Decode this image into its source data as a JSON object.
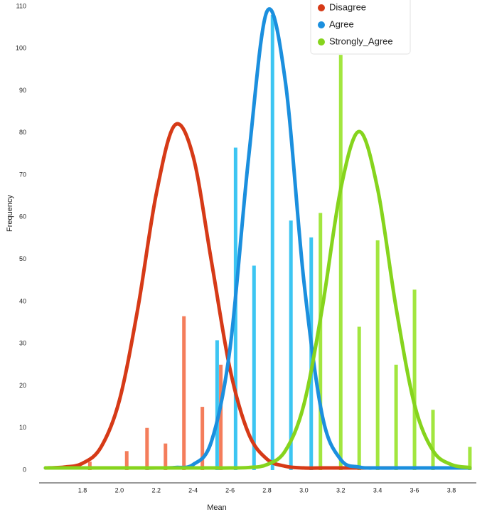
{
  "chart_data": {
    "type": "histogram-with-curves",
    "x_label": "Mean",
    "y_label": "Frequency",
    "xlim": [
      1.565,
      3.935
    ],
    "ylim": [
      0,
      110
    ],
    "yticks": [
      0,
      10,
      20,
      30,
      40,
      50,
      60,
      70,
      80,
      90,
      100,
      110
    ],
    "xticks": [
      1.8,
      {
        "value": 2.0,
        "label": "2.0"
      },
      2.2,
      {
        "value": 2.4,
        "label": "2-4"
      },
      {
        "value": 2.6,
        "label": "2-6"
      },
      2.8,
      {
        "value": 3.0,
        "label": "3.0"
      },
      3.2,
      3.4,
      {
        "value": 3.6,
        "label": "3-6"
      },
      3.8
    ],
    "legend": "upper right",
    "series": [
      {
        "name": "Disagree",
        "color": "#d63a17",
        "bar_color": "#f47d5b",
        "bars": {
          "x": [
            1.84,
            2.04,
            2.15,
            2.25,
            2.35,
            2.45,
            2.55
          ],
          "values": [
            2,
            4.5,
            10,
            6.3,
            36.5,
            15,
            25
          ]
        },
        "curve": {
          "x": [
            1.6,
            1.7,
            1.8,
            1.9,
            2.0,
            2.1,
            2.2,
            2.3,
            2.4,
            2.5,
            2.6,
            2.7,
            2.8,
            2.9,
            3.0,
            3.1,
            3.2,
            3.3,
            3.4,
            3.5,
            3.6,
            3.7,
            3.8,
            3.9
          ],
          "values": [
            0.5,
            0.7,
            1.6,
            5.4,
            16.5,
            38.3,
            65.5,
            81.8,
            74.4,
            49.3,
            23.9,
            8.7,
            2.6,
            0.9,
            0.5,
            0.5,
            0.5,
            0.5,
            0.5,
            0.5,
            0.5,
            0.5,
            0.5,
            0.5
          ]
        }
      },
      {
        "name": "Agree",
        "color": "#1b8fde",
        "bar_color": "#3cc5f2",
        "bars": {
          "x": [
            2.53,
            2.63,
            2.73,
            2.83,
            2.93,
            3.04
          ],
          "values": [
            30.8,
            76.5,
            48.5,
            108,
            59.2,
            55.2
          ]
        },
        "curve": {
          "x": [
            1.6,
            1.7,
            1.8,
            1.9,
            2.0,
            2.1,
            2.2,
            2.3,
            2.4,
            2.5,
            2.6,
            2.7,
            2.8,
            2.9,
            3.0,
            3.1,
            3.2,
            3.3,
            3.4,
            3.5,
            3.6,
            3.7,
            3.8,
            3.9
          ],
          "values": [
            0.5,
            0.5,
            0.5,
            0.5,
            0.5,
            0.5,
            0.5,
            0.6,
            1.3,
            6.9,
            28.9,
            73.9,
            108.8,
            92.1,
            44.9,
            12.9,
            2.5,
            0.7,
            0.5,
            0.5,
            0.5,
            0.5,
            0.5,
            0.5
          ]
        }
      },
      {
        "name": "Strongly_Agree",
        "color": "#86d41d",
        "bar_color": "#a2e63f",
        "bars": {
          "x": [
            3.09,
            3.2,
            3.3,
            3.4,
            3.5,
            3.6,
            3.7,
            3.9
          ],
          "values": [
            61,
            98.5,
            34,
            54.5,
            25,
            42.8,
            14.3,
            5.5
          ]
        },
        "curve": {
          "x": [
            1.6,
            1.7,
            1.8,
            1.9,
            2.0,
            2.1,
            2.2,
            2.3,
            2.4,
            2.5,
            2.6,
            2.7,
            2.8,
            2.9,
            3.0,
            3.1,
            3.2,
            3.3,
            3.4,
            3.5,
            3.6,
            3.7,
            3.8,
            3.9
          ],
          "values": [
            0.5,
            0.5,
            0.5,
            0.5,
            0.5,
            0.5,
            0.5,
            0.5,
            0.5,
            0.5,
            0.5,
            0.6,
            1.3,
            4.6,
            15.5,
            38.5,
            66.7,
            80.3,
            66.7,
            38.5,
            15.5,
            4.6,
            1.3,
            0.6
          ]
        }
      }
    ]
  }
}
